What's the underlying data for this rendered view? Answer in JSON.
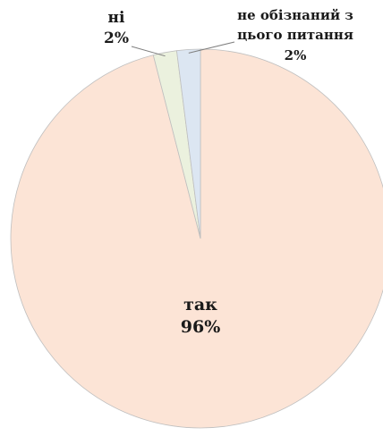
{
  "chart_data": {
    "type": "pie",
    "slices": [
      {
        "name": "так",
        "value": 96,
        "label": "96%",
        "color": "#fce4d6"
      },
      {
        "name": "ні",
        "value": 2,
        "label": "2%",
        "color": "#ebf1de"
      },
      {
        "name_lines": [
          "не обізнаний з",
          "цього питання"
        ],
        "value": 2,
        "label": "2%",
        "color": "#dce6f2"
      }
    ],
    "start_angle_deg": 0,
    "direction": "clockwise"
  }
}
